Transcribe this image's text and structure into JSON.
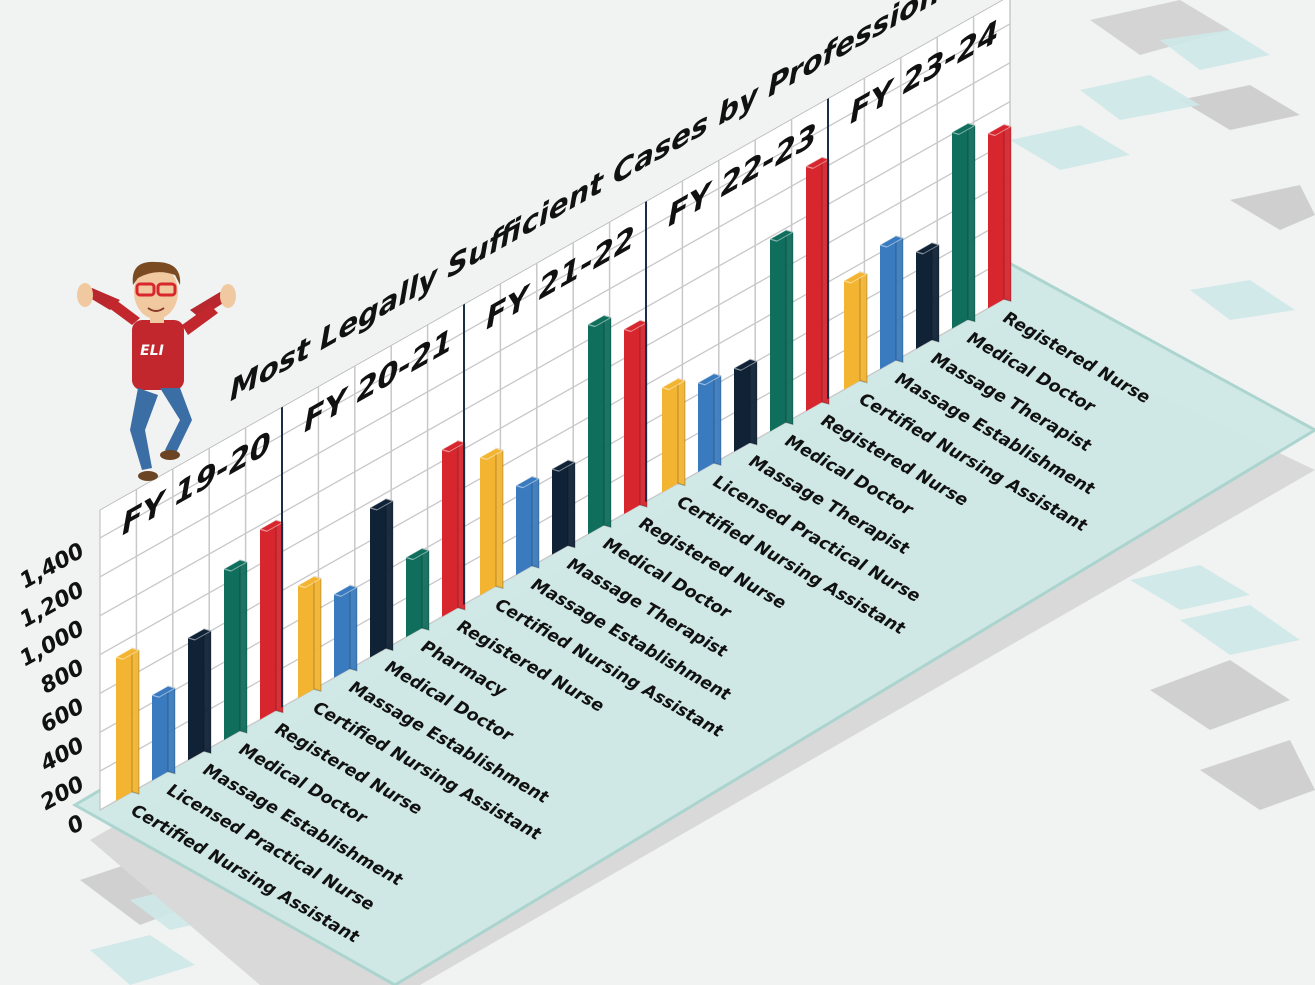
{
  "chart_data": {
    "type": "bar",
    "title": "Most Legally Sufficient Cases by Profession",
    "colors": [
      "#f3b531",
      "#3a7bbf",
      "#0f2236",
      "#0f6e5c",
      "#d7262e"
    ],
    "ylim": [
      0,
      1400
    ],
    "yticks": [
      0,
      200,
      400,
      600,
      800,
      {
        "value": 1000,
        "label": "1,000"
      },
      {
        "value": 1200,
        "label": "1,200"
      },
      {
        "value": 1400,
        "label": "1,400"
      }
    ],
    "grid": true,
    "groups": [
      {
        "label": "FY 19-20",
        "categories": [
          "Certified Nursing Assistant",
          "Licensed Practical Nurse",
          "Massage Establishment",
          "Medical Doctor",
          "Registered Nurse"
        ],
        "values": [
          740,
          440,
          630,
          880,
          980
        ]
      },
      {
        "label": "FY 20-21",
        "categories": [
          "Certified Nursing Assistant",
          "Massage Establishment",
          "Medical Doctor",
          "Pharmacy",
          "Registered Nurse"
        ],
        "values": [
          580,
          430,
          770,
          410,
          860
        ]
      },
      {
        "label": "FY 21-22",
        "categories": [
          "Certified Nursing Assistant",
          "Massage Establishment",
          "Massage Therapist",
          "Medical Doctor",
          "Registered Nurse"
        ],
        "values": [
          710,
          460,
          440,
          1080,
          950
        ]
      },
      {
        "label": "FY 22-23",
        "categories": [
          "Certified Nursing Assistant",
          "Licensed Practical Nurse",
          "Massage Therapist",
          "Medical Doctor",
          "Registered Nurse"
        ],
        "values": [
          540,
          460,
          430,
          990,
          1260
        ]
      },
      {
        "label": "FY 23-24",
        "categories": [
          "Certified Nursing Assistant",
          "Massage Establishment",
          "Massage Therapist",
          "Medical Doctor",
          "Registered Nurse"
        ],
        "values": [
          560,
          640,
          500,
          1010,
          900
        ]
      }
    ]
  },
  "mascot_text": "ELI"
}
